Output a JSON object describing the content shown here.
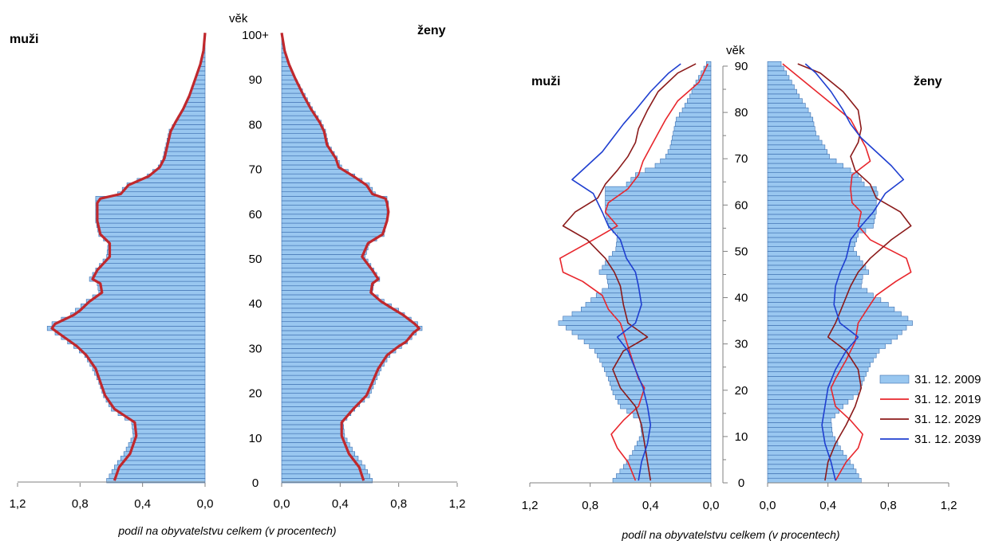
{
  "chart_data": [
    {
      "type": "bar",
      "chart_subtype": "population-pyramid",
      "left_side_label": "muži",
      "right_side_label": "ženy",
      "age_axis_title": "věk",
      "age_tick_labels": [
        "0",
        "10",
        "20",
        "30",
        "40",
        "50",
        "60",
        "70",
        "80",
        "90",
        "100+"
      ],
      "x_tick_labels_left": [
        "1,2",
        "0,8",
        "0,4",
        "0,0"
      ],
      "x_tick_labels_right": [
        "0,0",
        "0,4",
        "0,8",
        "1,2"
      ],
      "xlabel": "podíl na obyvatelstvu celkem (v procentech)",
      "xlim": [
        0,
        1.2
      ],
      "age_range": [
        0,
        100
      ],
      "bar_color": "#99c7f0",
      "series": [
        {
          "kind": "bars",
          "age_points": [
            0,
            3,
            6,
            10,
            13,
            16,
            19,
            22,
            25,
            28,
            30,
            31,
            33,
            34,
            35,
            37,
            38,
            40,
            42,
            44,
            45,
            47,
            50,
            53,
            55,
            58,
            60,
            62,
            63,
            64,
            66,
            68,
            70,
            72,
            75,
            78,
            80,
            83,
            86,
            90,
            93,
            96,
            100
          ],
          "male": [
            0.63,
            0.58,
            0.52,
            0.46,
            0.47,
            0.6,
            0.65,
            0.68,
            0.72,
            0.77,
            0.84,
            0.88,
            0.96,
            1.01,
            0.98,
            0.86,
            0.83,
            0.76,
            0.68,
            0.69,
            0.74,
            0.7,
            0.63,
            0.62,
            0.68,
            0.7,
            0.7,
            0.7,
            0.7,
            0.56,
            0.5,
            0.37,
            0.3,
            0.27,
            0.25,
            0.23,
            0.19,
            0.14,
            0.1,
            0.06,
            0.03,
            0.01,
            0.0
          ],
          "female": [
            0.62,
            0.57,
            0.5,
            0.43,
            0.42,
            0.5,
            0.6,
            0.64,
            0.68,
            0.74,
            0.82,
            0.86,
            0.92,
            0.96,
            0.93,
            0.84,
            0.8,
            0.7,
            0.62,
            0.63,
            0.67,
            0.63,
            0.57,
            0.6,
            0.7,
            0.72,
            0.72,
            0.73,
            0.72,
            0.64,
            0.6,
            0.5,
            0.41,
            0.38,
            0.32,
            0.3,
            0.27,
            0.21,
            0.16,
            0.09,
            0.05,
            0.02,
            0.0
          ]
        },
        {
          "kind": "line",
          "color": "#c0282d",
          "age_points": [
            0,
            3,
            6,
            10,
            13,
            16,
            19,
            22,
            25,
            28,
            30,
            31,
            33,
            34,
            35,
            37,
            38,
            40,
            42,
            44,
            45,
            47,
            50,
            53,
            55,
            58,
            60,
            62,
            63,
            64,
            66,
            68,
            70,
            72,
            75,
            78,
            80,
            83,
            86,
            90,
            93,
            96,
            100
          ],
          "male": [
            0.58,
            0.55,
            0.48,
            0.44,
            0.45,
            0.58,
            0.64,
            0.67,
            0.7,
            0.76,
            0.82,
            0.86,
            0.94,
            0.98,
            0.96,
            0.84,
            0.8,
            0.74,
            0.66,
            0.67,
            0.72,
            0.69,
            0.61,
            0.61,
            0.67,
            0.69,
            0.69,
            0.69,
            0.67,
            0.54,
            0.49,
            0.36,
            0.29,
            0.26,
            0.24,
            0.22,
            0.19,
            0.14,
            0.1,
            0.06,
            0.03,
            0.01,
            0.0
          ],
          "female": [
            0.56,
            0.53,
            0.46,
            0.41,
            0.41,
            0.49,
            0.58,
            0.62,
            0.66,
            0.72,
            0.8,
            0.85,
            0.9,
            0.94,
            0.91,
            0.83,
            0.78,
            0.68,
            0.61,
            0.62,
            0.66,
            0.62,
            0.55,
            0.59,
            0.69,
            0.72,
            0.73,
            0.72,
            0.71,
            0.62,
            0.58,
            0.49,
            0.39,
            0.37,
            0.31,
            0.29,
            0.26,
            0.2,
            0.15,
            0.09,
            0.05,
            0.02,
            0.0
          ]
        }
      ]
    },
    {
      "type": "bar",
      "chart_subtype": "population-pyramid",
      "left_side_label": "muži",
      "right_side_label": "ženy",
      "age_axis_title": "věk",
      "age_tick_labels": [
        "0",
        "10",
        "20",
        "30",
        "40",
        "50",
        "60",
        "70",
        "80",
        "90"
      ],
      "x_tick_labels_left": [
        "1,2",
        "0,8",
        "0,4",
        "0,0"
      ],
      "x_tick_labels_right": [
        "0,0",
        "0,4",
        "0,8",
        "1,2"
      ],
      "xlabel": "podíl na obyvatelstvu celkem (v procentech)",
      "xlim": [
        0,
        1.2
      ],
      "age_range": [
        0,
        90
      ],
      "legend_position": "right",
      "series": [
        {
          "name": "31. 12. 2009",
          "kind": "bars",
          "color": "#99c7f0",
          "age_points": [
            0,
            3,
            6,
            10,
            13,
            16,
            19,
            22,
            25,
            28,
            30,
            31,
            33,
            34,
            35,
            37,
            38,
            40,
            42,
            44,
            45,
            47,
            50,
            53,
            55,
            58,
            60,
            62,
            63,
            64,
            66,
            68,
            70,
            72,
            75,
            78,
            80,
            83,
            86,
            90
          ],
          "male": [
            0.65,
            0.58,
            0.52,
            0.46,
            0.47,
            0.6,
            0.65,
            0.68,
            0.72,
            0.77,
            0.84,
            0.88,
            0.96,
            1.01,
            0.98,
            0.86,
            0.83,
            0.76,
            0.68,
            0.69,
            0.74,
            0.7,
            0.63,
            0.62,
            0.68,
            0.7,
            0.7,
            0.7,
            0.7,
            0.56,
            0.5,
            0.37,
            0.3,
            0.27,
            0.25,
            0.23,
            0.19,
            0.14,
            0.1,
            0.03
          ],
          "female": [
            0.62,
            0.57,
            0.5,
            0.43,
            0.42,
            0.5,
            0.6,
            0.64,
            0.68,
            0.74,
            0.82,
            0.86,
            0.92,
            0.96,
            0.93,
            0.84,
            0.8,
            0.7,
            0.62,
            0.63,
            0.67,
            0.63,
            0.57,
            0.6,
            0.7,
            0.72,
            0.72,
            0.73,
            0.72,
            0.64,
            0.6,
            0.5,
            0.41,
            0.38,
            0.32,
            0.3,
            0.27,
            0.21,
            0.16,
            0.09
          ]
        },
        {
          "name": "31. 12. 2019",
          "kind": "line",
          "color": "#e8262c",
          "age_points": [
            0,
            4,
            7,
            10,
            13,
            16,
            20,
            22,
            26,
            30,
            34,
            37,
            40,
            43,
            45,
            48,
            52,
            55,
            58,
            60,
            63,
            66,
            69,
            72,
            75,
            78,
            82,
            86,
            90
          ],
          "male": [
            0.5,
            0.55,
            0.62,
            0.66,
            0.58,
            0.48,
            0.44,
            0.48,
            0.52,
            0.56,
            0.6,
            0.68,
            0.72,
            0.85,
            0.98,
            1.0,
            0.78,
            0.62,
            0.7,
            0.68,
            0.55,
            0.48,
            0.45,
            0.4,
            0.35,
            0.3,
            0.22,
            0.08,
            0.02
          ],
          "female": [
            0.45,
            0.52,
            0.6,
            0.63,
            0.55,
            0.45,
            0.42,
            0.45,
            0.52,
            0.58,
            0.6,
            0.66,
            0.72,
            0.85,
            0.95,
            0.92,
            0.68,
            0.6,
            0.62,
            0.56,
            0.55,
            0.56,
            0.68,
            0.65,
            0.6,
            0.55,
            0.4,
            0.25,
            0.1
          ]
        },
        {
          "name": "31. 12. 2029",
          "kind": "line",
          "color": "#8b1a1a",
          "age_points": [
            0,
            4,
            8,
            12,
            16,
            20,
            24,
            28,
            31,
            34,
            38,
            42,
            45,
            48,
            52,
            55,
            58,
            61,
            64,
            67,
            70,
            73,
            76,
            80,
            84,
            88,
            90
          ],
          "male": [
            0.4,
            0.42,
            0.44,
            0.46,
            0.5,
            0.6,
            0.65,
            0.58,
            0.42,
            0.55,
            0.58,
            0.6,
            0.64,
            0.7,
            0.82,
            0.98,
            0.9,
            0.75,
            0.7,
            0.62,
            0.55,
            0.5,
            0.48,
            0.42,
            0.35,
            0.22,
            0.1
          ],
          "female": [
            0.38,
            0.4,
            0.45,
            0.52,
            0.58,
            0.62,
            0.6,
            0.52,
            0.4,
            0.45,
            0.5,
            0.55,
            0.6,
            0.68,
            0.82,
            0.95,
            0.88,
            0.72,
            0.68,
            0.58,
            0.55,
            0.6,
            0.62,
            0.6,
            0.5,
            0.35,
            0.2
          ]
        },
        {
          "name": "31. 12. 2039",
          "kind": "line",
          "color": "#1f3fd0",
          "age_points": [
            0,
            4,
            8,
            12,
            16,
            20,
            24,
            28,
            31,
            34,
            38,
            42,
            45,
            48,
            52,
            55,
            58,
            62,
            65,
            68,
            71,
            74,
            77,
            80,
            84,
            88,
            90
          ],
          "male": [
            0.48,
            0.46,
            0.42,
            0.4,
            0.42,
            0.45,
            0.5,
            0.55,
            0.62,
            0.5,
            0.46,
            0.48,
            0.5,
            0.56,
            0.6,
            0.68,
            0.72,
            0.78,
            0.92,
            0.82,
            0.72,
            0.65,
            0.58,
            0.5,
            0.4,
            0.28,
            0.2
          ],
          "female": [
            0.45,
            0.42,
            0.38,
            0.36,
            0.38,
            0.4,
            0.45,
            0.52,
            0.6,
            0.48,
            0.44,
            0.45,
            0.48,
            0.52,
            0.55,
            0.62,
            0.7,
            0.78,
            0.9,
            0.82,
            0.72,
            0.62,
            0.55,
            0.5,
            0.42,
            0.32,
            0.25
          ]
        }
      ]
    }
  ]
}
